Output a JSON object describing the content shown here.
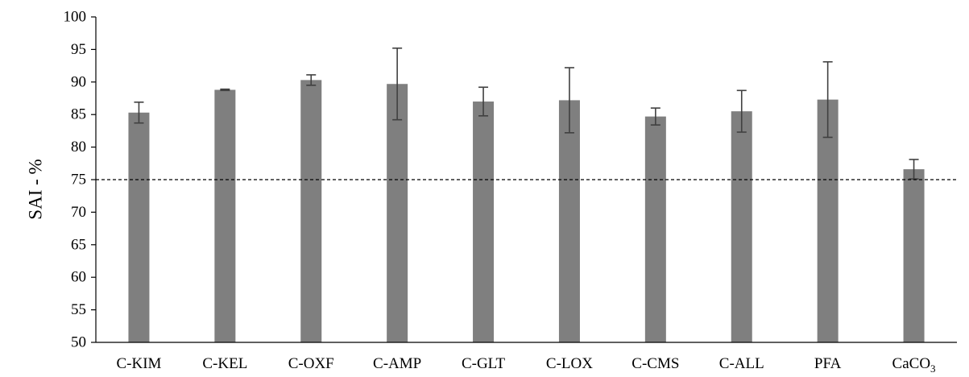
{
  "chart_data": {
    "type": "bar",
    "ylabel": "SAI - %",
    "ylim": [
      50,
      100
    ],
    "ytick_step": 5,
    "grid": false,
    "categories": [
      "C-KIM",
      "C-KEL",
      "C-OXF",
      "C-AMP",
      "C-GLT",
      "C-LOX",
      "C-CMS",
      "C-ALL",
      "PFA",
      "CaCO"
    ],
    "category_subscripts": [
      "",
      "",
      "",
      "",
      "",
      "",
      "",
      "",
      "",
      "3"
    ],
    "values": [
      85.3,
      88.8,
      90.3,
      89.7,
      87.0,
      87.2,
      84.7,
      85.5,
      87.3,
      76.6
    ],
    "errors": [
      1.6,
      0.1,
      0.8,
      5.5,
      2.2,
      5.0,
      1.3,
      3.2,
      5.8,
      1.5
    ],
    "reference_line": 75,
    "bar_color": "#7f7f7f",
    "error_color": "#404040"
  }
}
